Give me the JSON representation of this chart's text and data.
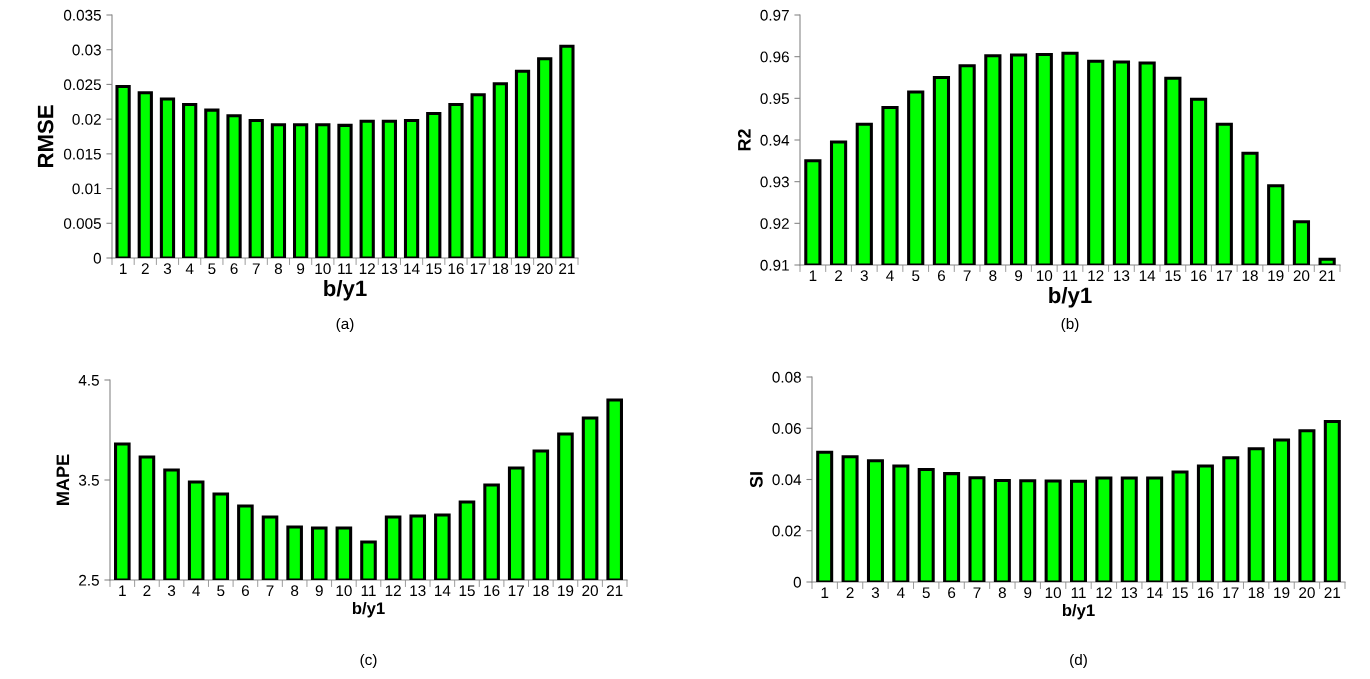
{
  "chart_data": [
    {
      "type": "bar",
      "categories": [
        "1",
        "2",
        "3",
        "4",
        "5",
        "6",
        "7",
        "8",
        "9",
        "10",
        "11",
        "12",
        "13",
        "14",
        "15",
        "16",
        "17",
        "18",
        "19",
        "20",
        "21"
      ],
      "values": [
        0.0247,
        0.0238,
        0.0229,
        0.0221,
        0.0213,
        0.0205,
        0.0198,
        0.0192,
        0.0192,
        0.0192,
        0.0191,
        0.0197,
        0.0197,
        0.0198,
        0.0208,
        0.0221,
        0.0235,
        0.0251,
        0.0269,
        0.0287,
        0.0305
      ],
      "color": "#00ff00",
      "xlabel": "b/y1",
      "ylabel": "RMSE",
      "ylim": [
        0,
        0.035
      ],
      "yticks": [
        0,
        0.005,
        0.01,
        0.015,
        0.02,
        0.025,
        0.03,
        0.035
      ],
      "annotations": [
        "(a)"
      ],
      "grid": false,
      "legend": false
    },
    {
      "type": "bar",
      "categories": [
        "1",
        "2",
        "3",
        "4",
        "5",
        "6",
        "7",
        "8",
        "9",
        "10",
        "11",
        "12",
        "13",
        "14",
        "15",
        "16",
        "17",
        "18",
        "19",
        "20",
        "21"
      ],
      "values": [
        0.935,
        0.9395,
        0.9438,
        0.9478,
        0.9515,
        0.955,
        0.9578,
        0.9602,
        0.9604,
        0.9605,
        0.9608,
        0.9589,
        0.9587,
        0.9585,
        0.9548,
        0.9498,
        0.9438,
        0.9368,
        0.929,
        0.9204,
        0.9114
      ],
      "color": "#00ff00",
      "xlabel": "b/y1",
      "ylabel": "R2",
      "ylim": [
        0.91,
        0.97
      ],
      "yticks": [
        0.91,
        0.92,
        0.93,
        0.94,
        0.95,
        0.96,
        0.97
      ],
      "annotations": [
        "(b)"
      ],
      "grid": false,
      "legend": false
    },
    {
      "type": "bar",
      "categories": [
        "1",
        "2",
        "3",
        "4",
        "5",
        "6",
        "7",
        "8",
        "9",
        "10",
        "11",
        "12",
        "13",
        "14",
        "15",
        "16",
        "17",
        "18",
        "19",
        "20",
        "21"
      ],
      "values": [
        3.86,
        3.73,
        3.6,
        3.48,
        3.36,
        3.24,
        3.13,
        3.03,
        3.02,
        3.02,
        2.88,
        3.13,
        3.14,
        3.15,
        3.28,
        3.45,
        3.62,
        3.79,
        3.96,
        4.12,
        4.3
      ],
      "color": "#00ff00",
      "xlabel": "b/y1",
      "ylabel": "MAPE",
      "ylim": [
        2.5,
        4.5
      ],
      "yticks": [
        2.5,
        3.5,
        4.5
      ],
      "annotations": [
        "(c)"
      ],
      "grid": false,
      "legend": false
    },
    {
      "type": "bar",
      "categories": [
        "1",
        "2",
        "3",
        "4",
        "5",
        "6",
        "7",
        "8",
        "9",
        "10",
        "11",
        "12",
        "13",
        "14",
        "15",
        "16",
        "17",
        "18",
        "19",
        "20",
        "21"
      ],
      "values": [
        0.0506,
        0.0489,
        0.0473,
        0.0453,
        0.0439,
        0.0423,
        0.0407,
        0.0396,
        0.0395,
        0.0394,
        0.0393,
        0.0406,
        0.0406,
        0.0406,
        0.0429,
        0.0453,
        0.0485,
        0.052,
        0.0554,
        0.059,
        0.0626
      ],
      "color": "#00ff00",
      "xlabel": "b/y1",
      "ylabel": "SI",
      "ylim": [
        0,
        0.08
      ],
      "yticks": [
        0,
        0.02,
        0.04,
        0.06,
        0.08
      ],
      "annotations": [
        "(d)"
      ],
      "grid": false,
      "legend": false
    }
  ]
}
